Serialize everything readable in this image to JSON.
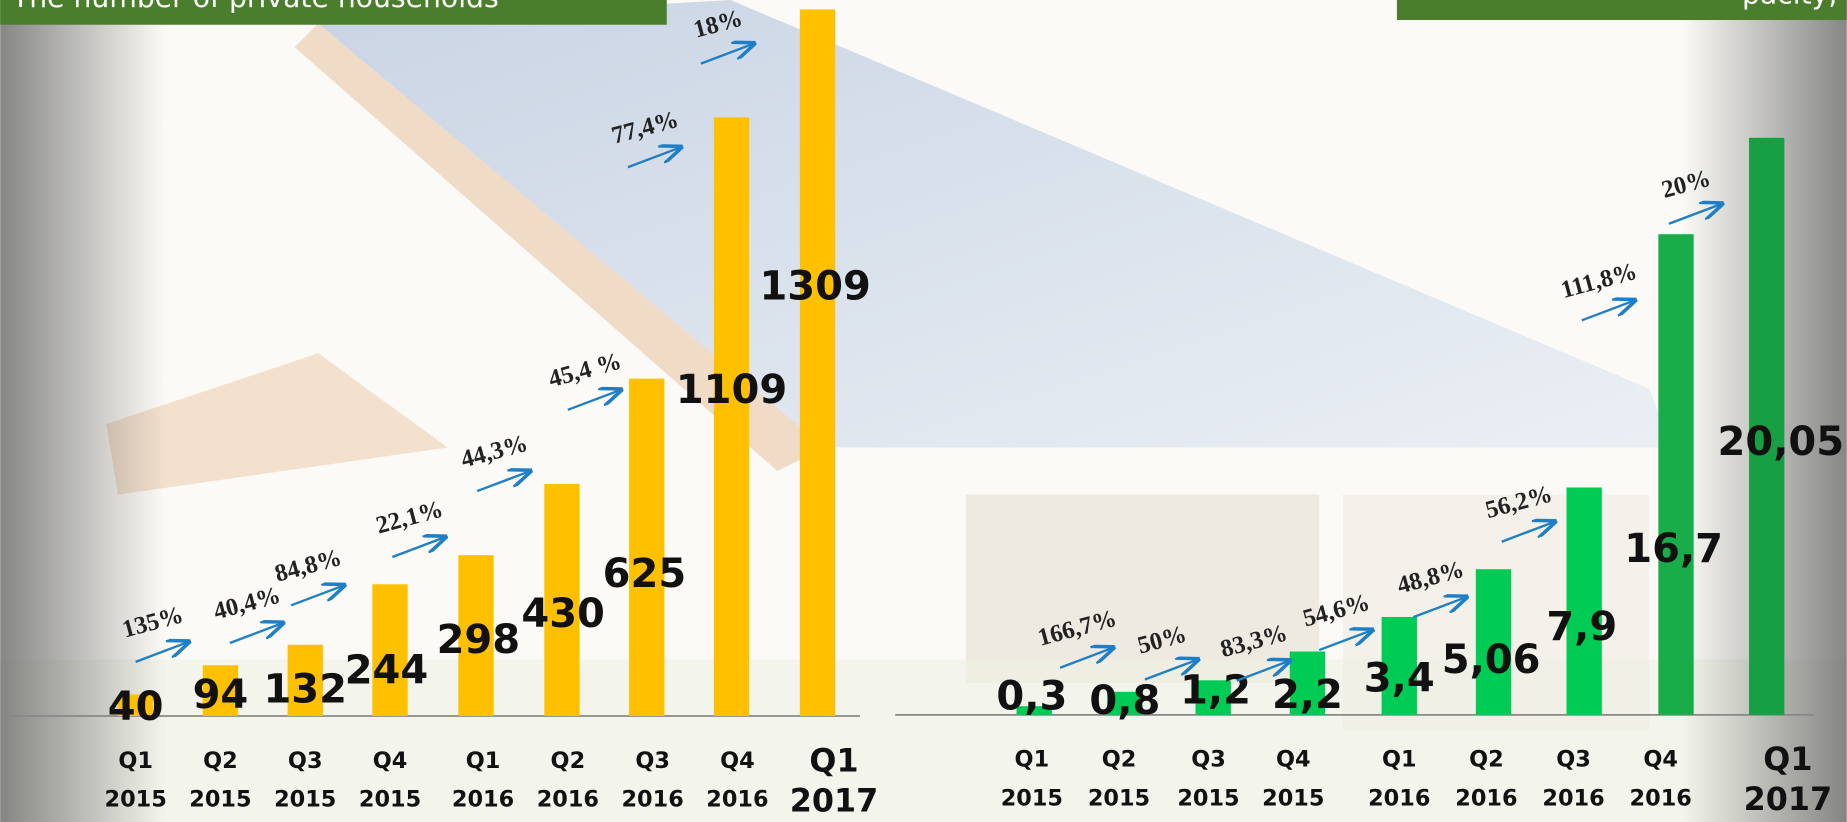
{
  "chart_data": [
    {
      "type": "bar",
      "title": "The number of private households",
      "categories": [
        "Q1 2015",
        "Q2 2015",
        "Q3 2015",
        "Q4 2015",
        "Q1 2016",
        "Q2 2016",
        "Q3 2016",
        "Q4 2016",
        "Q1 2017"
      ],
      "values": [
        40,
        94,
        132,
        244,
        298,
        430,
        625,
        1109,
        1309
      ],
      "colors": [
        "#ffc000",
        "#ffc000",
        "#ffc000",
        "#ffc000",
        "#ffc000",
        "#ffc000",
        "#ffc000",
        "#ffc000",
        "#ffc000"
      ],
      "annotations": [
        "135%",
        "40,4%",
        "84,8%",
        "22,1%",
        "44,3%",
        "45,4 %",
        "77,4%",
        "18%"
      ]
    },
    {
      "type": "bar",
      "title": "pacity,",
      "categories": [
        "Q1 2015",
        "Q2 2015",
        "Q3 2015",
        "Q4 2015",
        "Q1 2016",
        "Q2 2016",
        "Q3 2016",
        "Q4 2016",
        "Q1 2017"
      ],
      "values": [
        0.3,
        0.8,
        1.2,
        2.2,
        3.4,
        5.06,
        7.9,
        16.7,
        20.05
      ],
      "value_labels": [
        "0,3",
        "0,8",
        "1,2",
        "2,2",
        "3,4",
        "5,06",
        "7,9",
        "16,7",
        "20,05"
      ],
      "colors": [
        "#00cc55",
        "#00cc55",
        "#00cc55",
        "#00cc55",
        "#00cc55",
        "#00cc55",
        "#00cc55",
        "#19ad4a",
        "#16a043"
      ],
      "annotations": [
        "166,7%",
        "50%",
        "83,3%",
        "54,6%",
        "48,8%",
        "56,2%",
        "111,8%",
        "20%"
      ]
    }
  ]
}
